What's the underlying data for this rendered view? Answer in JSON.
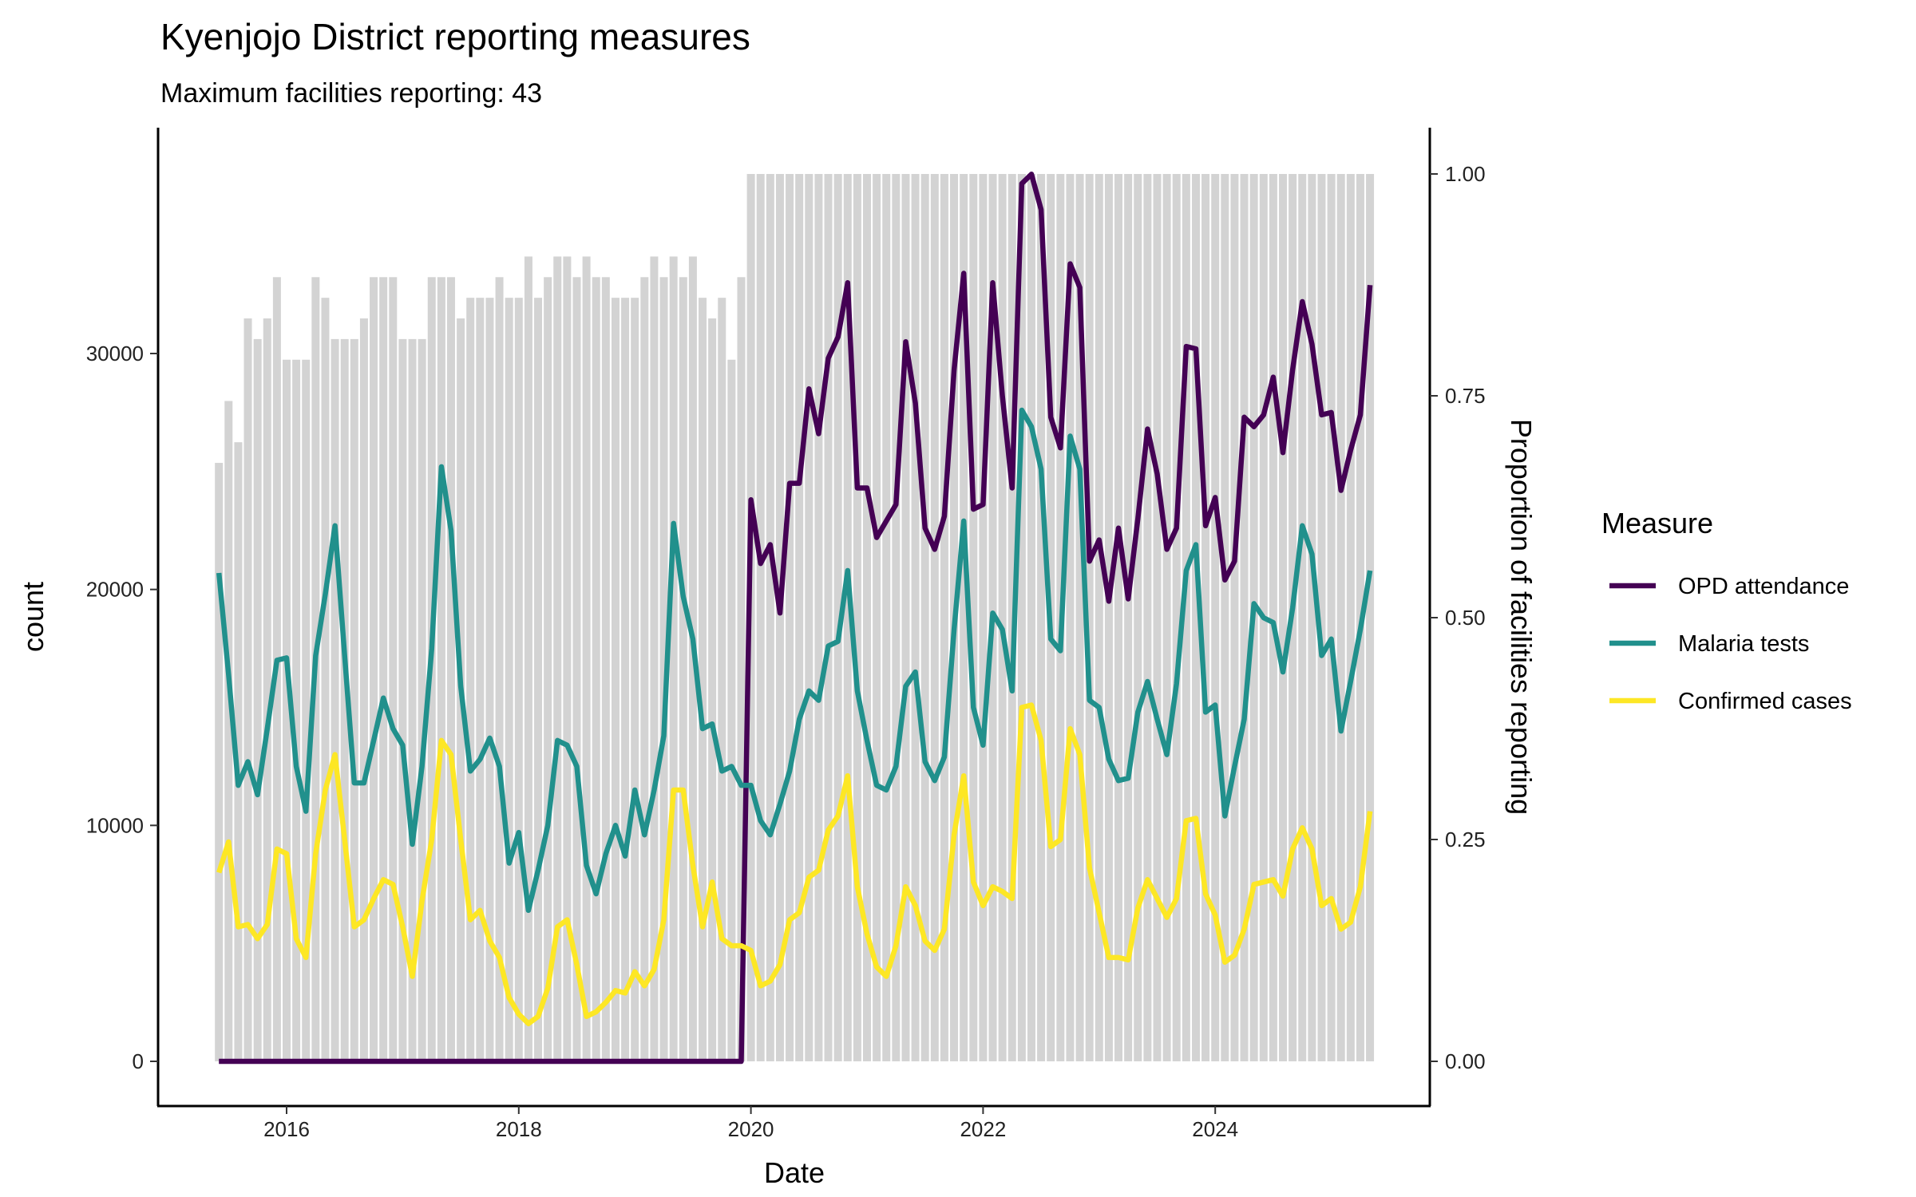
{
  "chart_data": {
    "type": "line",
    "title": "Kyenjojo District reporting measures",
    "subtitle": "Maximum facilities reporting: 43",
    "xlabel": "Date",
    "ylabel": "count",
    "y2label": "Proportion of facilities reporting",
    "start_month": "2015-06",
    "n_months": 120,
    "ylim": [
      0,
      38000
    ],
    "y2lim": [
      0,
      1.05
    ],
    "max_facilities": 43,
    "x_ticks": [
      "2016",
      "2018",
      "2020",
      "2022",
      "2024"
    ],
    "y_ticks": [
      "0",
      "10000",
      "20000",
      "30000"
    ],
    "y2_ticks": [
      "0.00",
      "0.25",
      "0.50",
      "0.75",
      "1.00"
    ],
    "grid": false,
    "legend": {
      "title": "Measure",
      "position": "right"
    },
    "facilities_reporting": [
      29,
      32,
      30,
      36,
      35,
      36,
      38,
      34,
      34,
      34,
      38,
      37,
      35,
      35,
      35,
      36,
      38,
      38,
      38,
      35,
      35,
      35,
      38,
      38,
      38,
      36,
      37,
      37,
      37,
      38,
      37,
      37,
      39,
      37,
      38,
      39,
      39,
      38,
      39,
      38,
      38,
      37,
      37,
      37,
      38,
      39,
      38,
      39,
      38,
      39,
      37,
      36,
      37,
      34,
      38,
      43,
      43,
      43,
      43,
      43,
      43,
      43,
      43,
      43,
      43,
      43,
      43,
      43,
      43,
      43,
      43,
      43,
      43,
      43,
      43,
      43,
      43,
      43,
      43,
      43,
      43,
      43,
      43,
      43,
      43,
      43,
      43,
      43,
      43,
      43,
      43,
      43,
      43,
      43,
      43,
      43,
      43,
      43,
      43,
      43,
      43,
      43,
      43,
      43,
      43,
      43,
      43,
      43,
      43,
      43,
      43,
      43,
      43,
      43,
      43,
      43,
      43,
      43,
      43,
      43
    ],
    "series": [
      {
        "name": "OPD attendance",
        "color": "#440154",
        "values": [
          0,
          0,
          0,
          0,
          0,
          0,
          0,
          0,
          0,
          0,
          0,
          0,
          0,
          0,
          0,
          0,
          0,
          0,
          0,
          0,
          0,
          0,
          0,
          0,
          0,
          0,
          0,
          0,
          0,
          0,
          0,
          0,
          0,
          0,
          0,
          0,
          0,
          0,
          0,
          0,
          0,
          0,
          0,
          0,
          0,
          0,
          0,
          0,
          0,
          0,
          0,
          0,
          0,
          0,
          0,
          23800,
          21100,
          21900,
          19000,
          24500,
          24500,
          28500,
          26600,
          29800,
          30700,
          33000,
          24300,
          24300,
          22200,
          22900,
          23600,
          30500,
          27900,
          22600,
          21700,
          23100,
          29300,
          33400,
          23400,
          23600,
          33000,
          28200,
          24300,
          37200,
          37600,
          36100,
          27300,
          26000,
          33800,
          32800,
          21200,
          22100,
          19500,
          22600,
          19600,
          23000,
          26800,
          24900,
          21700,
          22600,
          30300,
          30200,
          22700,
          23900,
          20400,
          21200,
          27300,
          26900,
          27400,
          29000,
          25800,
          29300,
          32200,
          30400,
          27400,
          27500,
          24200,
          25900,
          27400,
          32900
        ]
      },
      {
        "name": "Malaria tests",
        "color": "#21908C",
        "values": [
          20700,
          16400,
          11700,
          12700,
          11300,
          14100,
          17000,
          17100,
          12500,
          10600,
          17200,
          19800,
          22700,
          17200,
          11800,
          11800,
          13600,
          15400,
          14100,
          13400,
          9200,
          12500,
          17500,
          25200,
          22500,
          15900,
          12300,
          12800,
          13700,
          12500,
          8400,
          9700,
          6400,
          8100,
          10000,
          13600,
          13400,
          12500,
          8300,
          7100,
          8800,
          10000,
          8700,
          11500,
          9600,
          11500,
          13800,
          22800,
          19700,
          17900,
          14100,
          14300,
          12300,
          12500,
          11700,
          11700,
          10200,
          9600,
          10900,
          12300,
          14500,
          15700,
          15300,
          17600,
          17800,
          20800,
          15700,
          13600,
          11700,
          11500,
          12500,
          15900,
          16500,
          12700,
          11900,
          12900,
          18300,
          22900,
          15000,
          13400,
          19000,
          18300,
          15700,
          27600,
          26900,
          25100,
          17900,
          17400,
          26500,
          25100,
          15300,
          15000,
          12800,
          11900,
          12000,
          14800,
          16100,
          14500,
          13000,
          16000,
          20800,
          21900,
          14800,
          15100,
          10400,
          12500,
          14500,
          19400,
          18800,
          18600,
          16500,
          19200,
          22700,
          21500,
          17200,
          17900,
          14000,
          16100,
          18300,
          20800
        ]
      },
      {
        "name": "Confirmed cases",
        "color": "#FDE725",
        "values": [
          8000,
          9300,
          5700,
          5800,
          5200,
          5800,
          9000,
          8800,
          5200,
          4400,
          8800,
          11500,
          13000,
          9400,
          5700,
          6000,
          6900,
          7700,
          7500,
          5700,
          3600,
          6800,
          9400,
          13600,
          13000,
          9400,
          6000,
          6400,
          5100,
          4400,
          2700,
          2000,
          1600,
          1900,
          3100,
          5700,
          6000,
          4100,
          1900,
          2100,
          2500,
          3000,
          2900,
          3800,
          3200,
          3900,
          6000,
          11500,
          11500,
          8300,
          5700,
          7600,
          5200,
          4900,
          4900,
          4700,
          3200,
          3400,
          4100,
          6000,
          6300,
          7800,
          8100,
          9800,
          10400,
          12100,
          7400,
          5400,
          4000,
          3600,
          4900,
          7400,
          6600,
          5100,
          4700,
          5600,
          9600,
          12100,
          7600,
          6600,
          7400,
          7200,
          6900,
          15000,
          15100,
          13600,
          9100,
          9400,
          14100,
          13000,
          8200,
          6300,
          4400,
          4400,
          4300,
          6500,
          7700,
          6900,
          6100,
          6900,
          10200,
          10300,
          7100,
          6200,
          4200,
          4500,
          5600,
          7500,
          7600,
          7700,
          7000,
          9000,
          9900,
          9000,
          6600,
          6900,
          5600,
          5900,
          7400,
          10600
        ]
      }
    ]
  }
}
